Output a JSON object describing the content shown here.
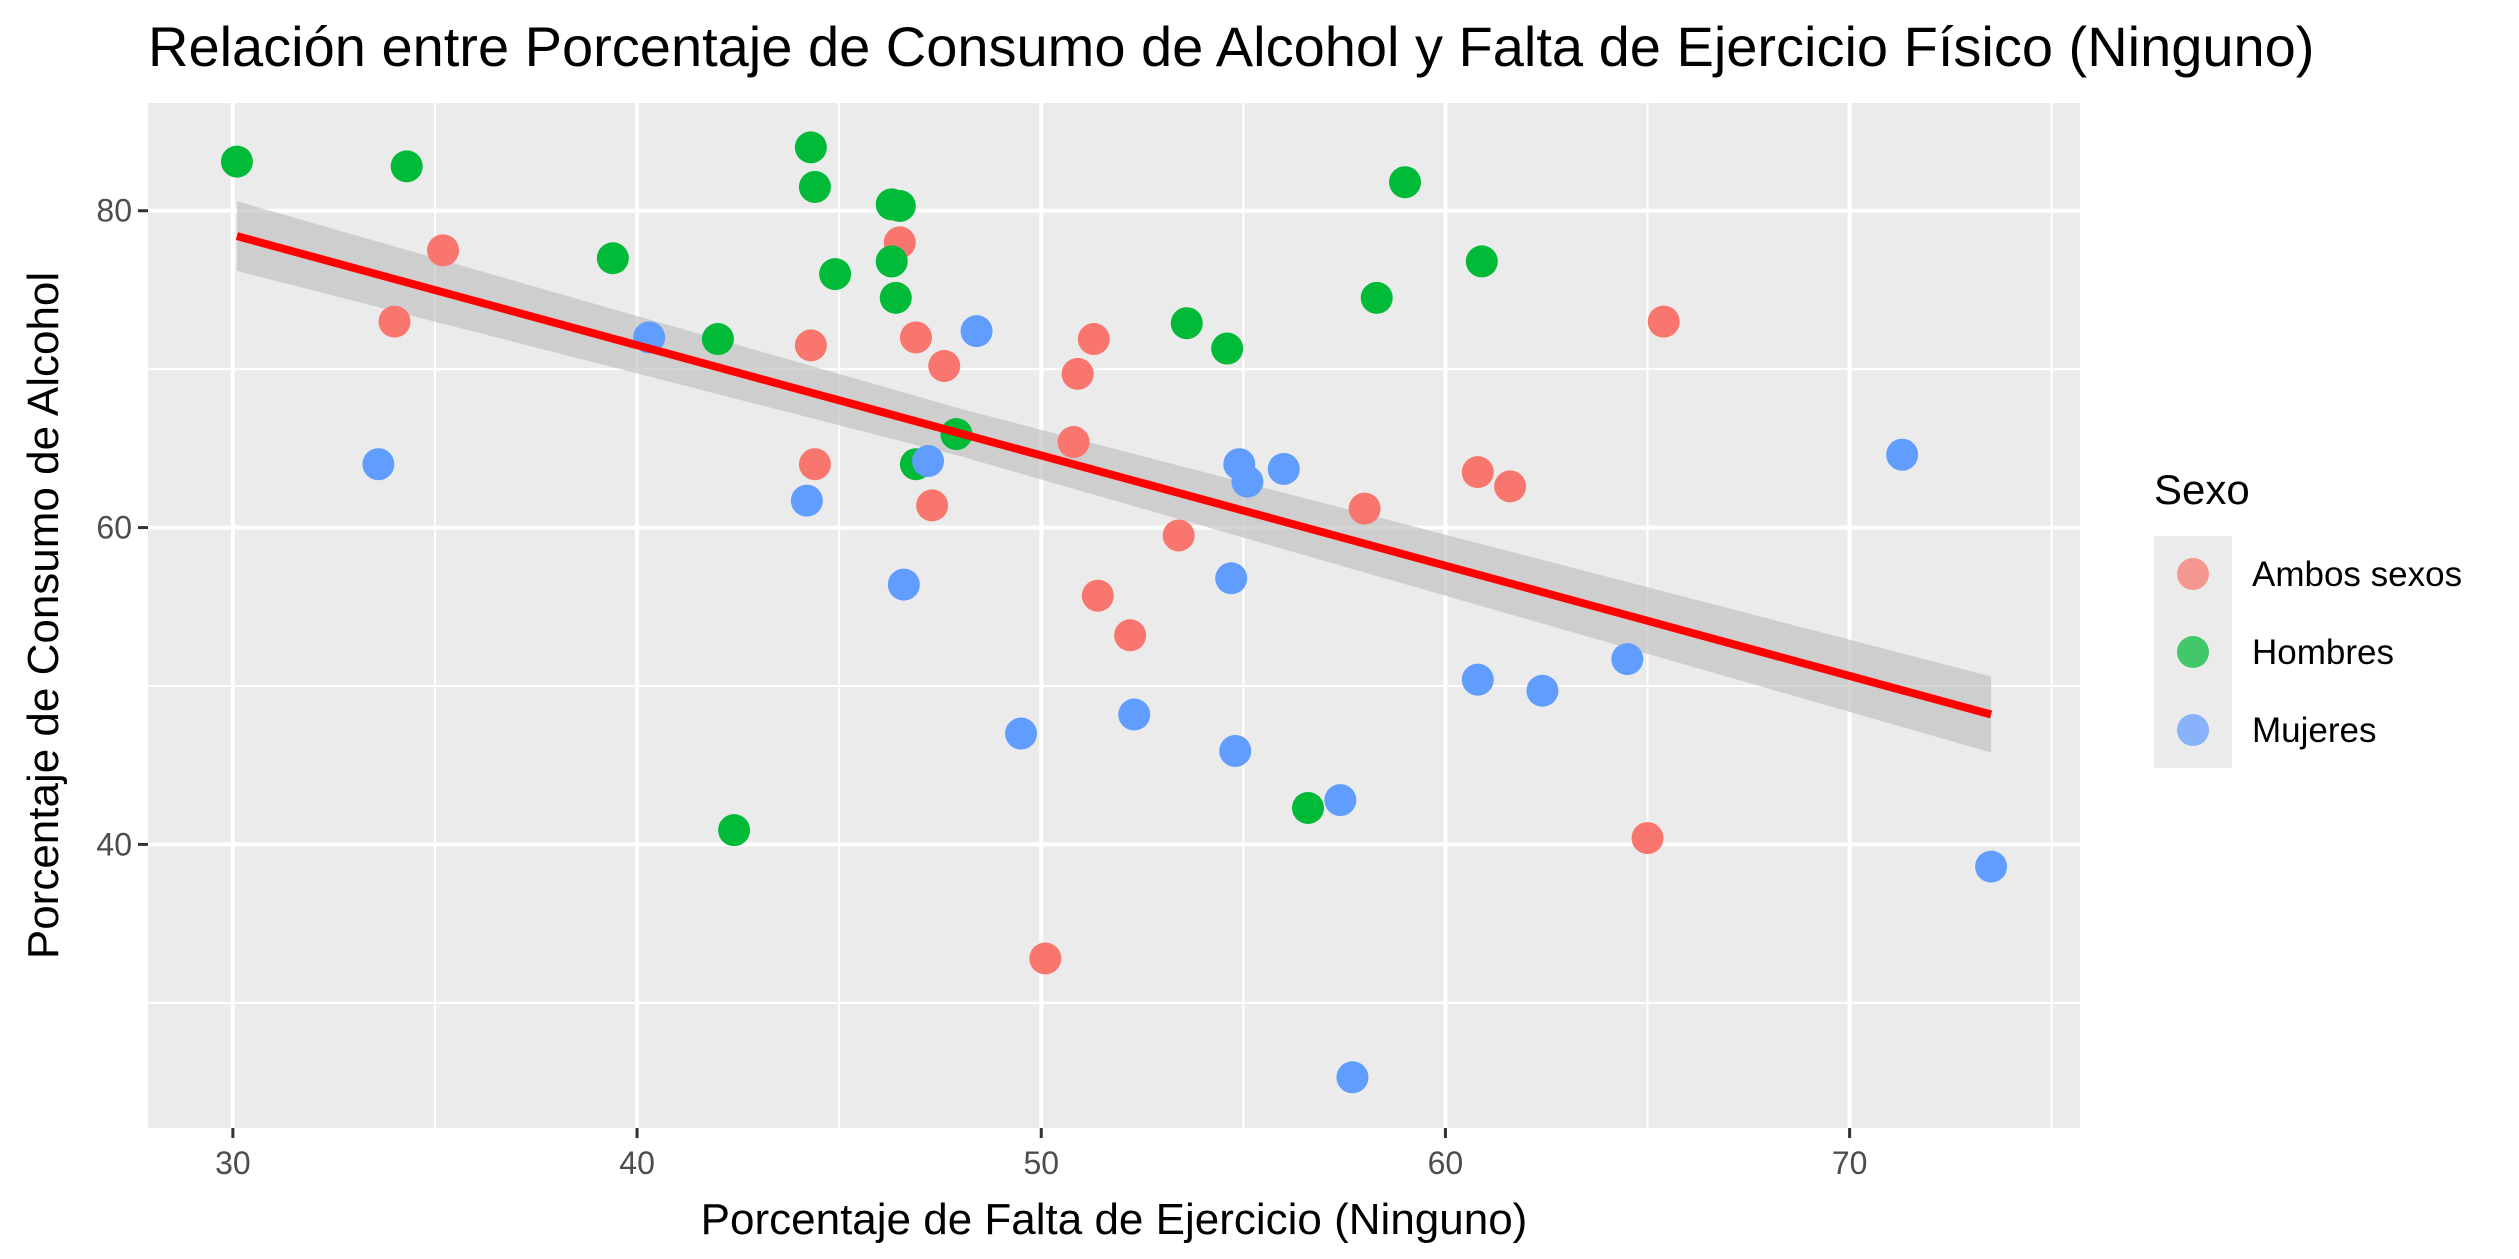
{
  "chart_data": {
    "type": "scatter",
    "title": "Relación entre Porcentaje de Consumo de Alcohol y Falta de Ejercicio Físico (Ninguno)",
    "xlabel": "Porcentaje de Falta de Ejercicio (Ninguno)",
    "ylabel": "Porcentaje de Consumo de Alcohol",
    "xlim": [
      27.9,
      75.7
    ],
    "ylim": [
      22.1,
      86.8
    ],
    "x_ticks": [
      30,
      40,
      50,
      60,
      70
    ],
    "y_ticks": [
      40,
      60,
      80
    ],
    "grid": true,
    "legend": {
      "title": "Sexo",
      "position": "right"
    },
    "series": [
      {
        "name": "Ambos sexos",
        "color": "#F8766D",
        "points": [
          [
            34.0,
            73.0
          ],
          [
            35.2,
            77.5
          ],
          [
            44.3,
            71.5
          ],
          [
            44.4,
            64.0
          ],
          [
            46.5,
            78.0
          ],
          [
            46.9,
            72.0
          ],
          [
            47.3,
            61.4
          ],
          [
            47.6,
            70.2
          ],
          [
            50.1,
            32.8
          ],
          [
            50.8,
            65.4
          ],
          [
            50.9,
            69.7
          ],
          [
            51.3,
            71.9
          ],
          [
            51.4,
            55.7
          ],
          [
            52.2,
            53.2
          ],
          [
            53.4,
            59.5
          ],
          [
            58.0,
            61.2
          ],
          [
            60.8,
            63.5
          ],
          [
            61.6,
            62.6
          ],
          [
            65.0,
            40.4
          ],
          [
            65.4,
            73.0
          ]
        ]
      },
      {
        "name": "Hombres",
        "color": "#00BA38",
        "points": [
          [
            30.1,
            83.1
          ],
          [
            34.3,
            82.8
          ],
          [
            39.4,
            77.0
          ],
          [
            42.0,
            71.9
          ],
          [
            42.4,
            40.9
          ],
          [
            44.3,
            84.0
          ],
          [
            44.4,
            81.5
          ],
          [
            44.9,
            76.0
          ],
          [
            46.3,
            80.4
          ],
          [
            46.5,
            80.3
          ],
          [
            46.3,
            76.8
          ],
          [
            46.4,
            74.5
          ],
          [
            46.9,
            64.0
          ],
          [
            47.9,
            65.9
          ],
          [
            53.6,
            72.9
          ],
          [
            54.6,
            71.3
          ],
          [
            56.6,
            42.3
          ],
          [
            58.3,
            74.5
          ],
          [
            59.0,
            81.8
          ],
          [
            60.9,
            76.8
          ]
        ]
      },
      {
        "name": "Mujeres",
        "color": "#619CFF",
        "points": [
          [
            33.6,
            64.0
          ],
          [
            40.3,
            72.0
          ],
          [
            44.2,
            61.7
          ],
          [
            46.6,
            56.4
          ],
          [
            47.2,
            64.2
          ],
          [
            48.4,
            72.4
          ],
          [
            49.5,
            47.0
          ],
          [
            52.3,
            48.2
          ],
          [
            54.7,
            56.8
          ],
          [
            54.8,
            45.9
          ],
          [
            54.9,
            64.0
          ],
          [
            55.1,
            62.9
          ],
          [
            56.0,
            63.7
          ],
          [
            57.4,
            42.8
          ],
          [
            57.7,
            25.3
          ],
          [
            60.8,
            50.4
          ],
          [
            62.4,
            49.7
          ],
          [
            64.5,
            51.7
          ],
          [
            71.3,
            64.6
          ],
          [
            73.5,
            38.6
          ]
        ]
      }
    ],
    "trendline": {
      "type": "linear",
      "color": "#FF0000",
      "band_color": "#BEBEBE",
      "points": [
        [
          30.1,
          78.4
        ],
        [
          73.5,
          48.2
        ]
      ],
      "confidence_band": [
        [
          30.1,
          76.2,
          80.6
        ],
        [
          48.0,
          64.5,
          67.5
        ],
        [
          73.5,
          45.8,
          50.6
        ]
      ]
    }
  }
}
